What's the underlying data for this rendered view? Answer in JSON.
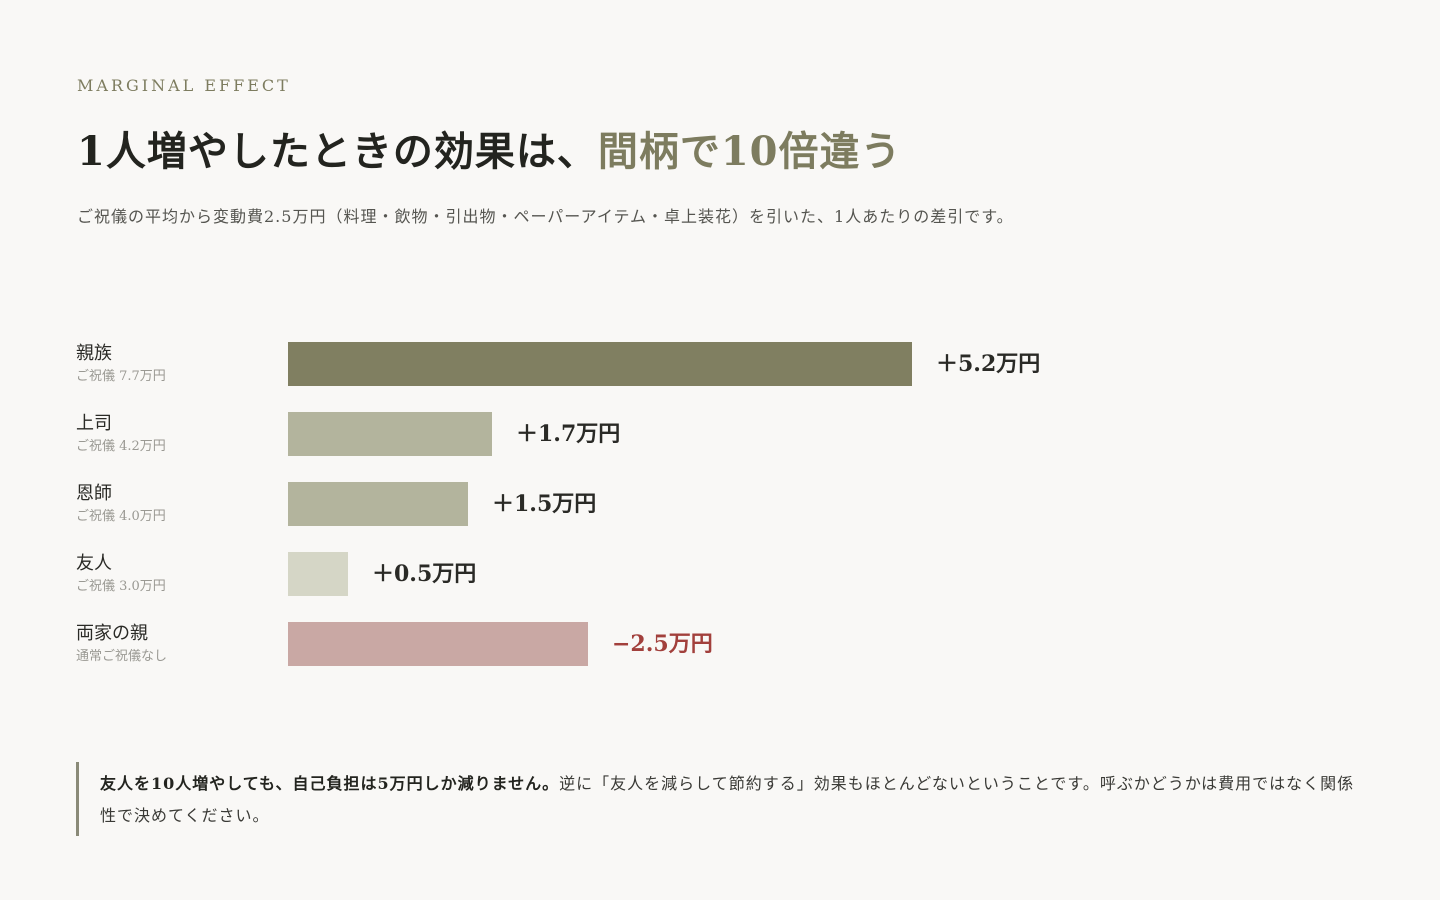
{
  "eyebrow": "MARGINAL EFFECT",
  "headline": {
    "main": "1人増やしたときの効果は、",
    "accent": "間柄で10倍違う"
  },
  "subtitle": "ご祝儀の平均から変動費2.5万円（料理・飲物・引出物・ペーパーアイテム・卓上装花）を引いた、1人あたりの差引です。",
  "chart_data": {
    "type": "bar",
    "orientation": "horizontal",
    "unit": "万円",
    "categories": [
      "親族",
      "上司",
      "恩師",
      "友人",
      "両家の親"
    ],
    "sublabels": [
      "ご祝儀 7.7万円",
      "ご祝儀 4.2万円",
      "ご祝儀 4.0万円",
      "ご祝儀 3.0万円",
      "通常ご祝儀なし"
    ],
    "values": [
      5.2,
      1.7,
      1.5,
      0.5,
      -2.5
    ],
    "value_labels": [
      "＋5.2万円",
      "＋1.7万円",
      "＋1.5万円",
      "＋0.5万円",
      "−2.5万円"
    ],
    "colors": [
      "#807f61",
      "#b3b49d",
      "#b3b49d",
      "#d5d6c6",
      "#c9a8a4"
    ],
    "negative_label_color": "#a2403c",
    "grid": false
  },
  "callout": {
    "emphasis": "友人を10人増やしても、自己負担は5万円しか減りません。",
    "rest": "逆に「友人を減らして節約する」効果もほとんどないということです。呼ぶかどうかは費用ではなく関係性で決めてください。"
  },
  "colors": {
    "background": "#f9f8f6",
    "accent": "#7d7c5f"
  }
}
